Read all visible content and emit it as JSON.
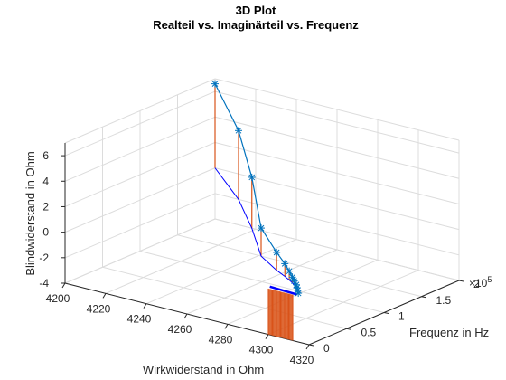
{
  "chart_data": {
    "type": "line",
    "title": [
      "3D Plot",
      "Realteil vs. Imaginärteil vs. Frequenz"
    ],
    "xlabel": "Wirkwiderstand in Ohm",
    "ylabel": "Frequenz in Hz",
    "zlabel": "Blindwiderstand in Ohm",
    "xlim": [
      4200,
      4320
    ],
    "ylim": [
      0,
      200000
    ],
    "zlim": [
      -4,
      7
    ],
    "x_ticks": [
      "4200",
      "4220",
      "4240",
      "4260",
      "4280",
      "4300",
      "4320"
    ],
    "y_ticks": [
      "0",
      "0.5",
      "1",
      "1.5",
      "2"
    ],
    "y_exponent": "×10",
    "y_exponent_power": "5",
    "z_ticks": [
      "-4",
      "-2",
      "0",
      "2",
      "4",
      "6"
    ],
    "grid": true,
    "colors": {
      "impedance_line": "#0072BD",
      "projection": "#0000FF",
      "stems": "#D95319"
    },
    "series": [
      {
        "marker": "*",
        "x": [
          4200,
          4230,
          4255,
          4278,
          4293,
          4300,
          4304,
          4307,
          4309,
          4311,
          4312,
          4313,
          4314
        ],
        "y": [
          200000,
          150000,
          100000,
          50000,
          30000,
          22000,
          17000,
          13000,
          10000,
          7500,
          5500,
          4000,
          2000
        ],
        "z": [
          6.6,
          5.4,
          4.0,
          2.2,
          1.4,
          1.0,
          0.7,
          0.45,
          0.3,
          0.15,
          0.0,
          -0.1,
          -0.25
        ]
      }
    ]
  }
}
